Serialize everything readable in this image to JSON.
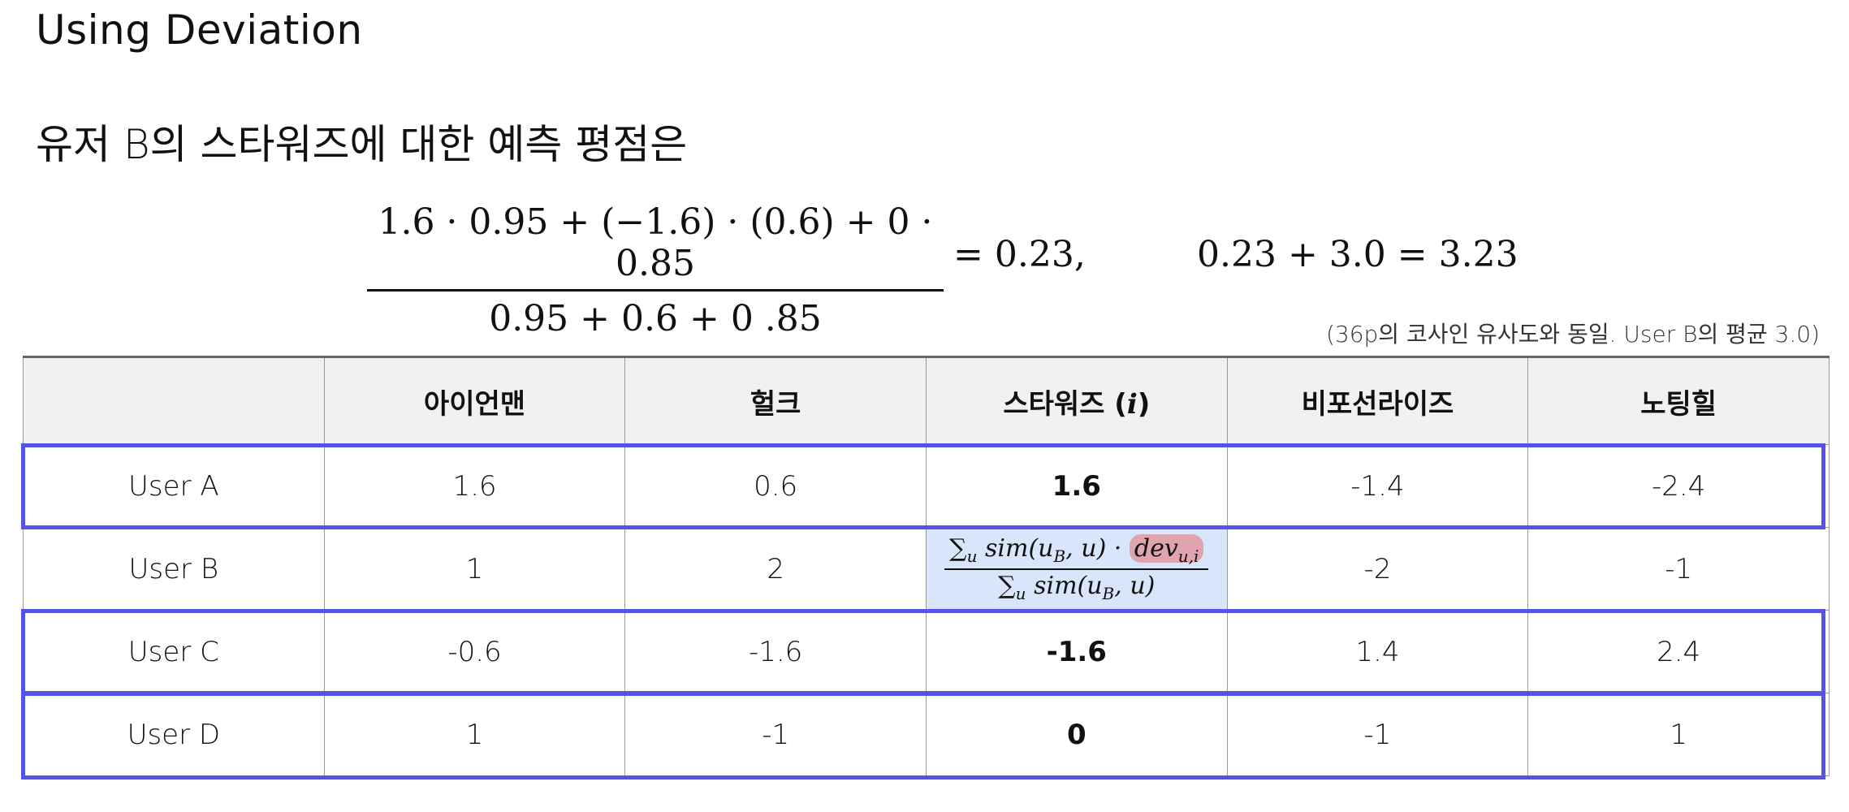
{
  "title": "Using Deviation",
  "subtitle": "유저 B의 스타워즈에 대한 예측 평점은",
  "equation": {
    "numerator": "1.6 · 0.95 + (−1.6) · (0.6) + 0 · 0.85",
    "denominator": "0.95 + 0.6 + 0 .85",
    "result": "= 0.23,",
    "final": "0.23 + 3.0 = 3.23"
  },
  "note": "(36p의 코사인 유사도와 동일. User B의 평균 3.0)",
  "table": {
    "headers": [
      "",
      "아이언맨",
      "헐크",
      "스타워즈 (",
      "비포선라이즈",
      "노팅힐"
    ],
    "header_item_symbol": "i",
    "header_close": ")",
    "rows": [
      {
        "user": "User A",
        "values": [
          "1.6",
          "0.6",
          "1.6",
          "-1.4",
          "-2.4"
        ]
      },
      {
        "user": "User B",
        "values": [
          "1",
          "2",
          "",
          "-2",
          "-1"
        ]
      },
      {
        "user": "User C",
        "values": [
          "-0.6",
          "-1.6",
          "-1.6",
          "1.4",
          "2.4"
        ]
      },
      {
        "user": "User D",
        "values": [
          "1",
          "-1",
          "0",
          "-1",
          "1"
        ]
      }
    ],
    "formula": {
      "sum_num": "∑",
      "sub_u": "u",
      "sim": " sim(u",
      "sub_B": "B",
      "sim_close": ", u) · ",
      "dev": "dev",
      "sub_ui": "u,i",
      "sum_den": "∑",
      "sim_den": " sim(u",
      "den_close": ", u)"
    }
  },
  "colors": {
    "highlight_border": "#5454e6",
    "formula_bg": "#d9e5fb",
    "dev_highlight": "#e0a3b0",
    "header_bg": "#f1f1f1"
  }
}
